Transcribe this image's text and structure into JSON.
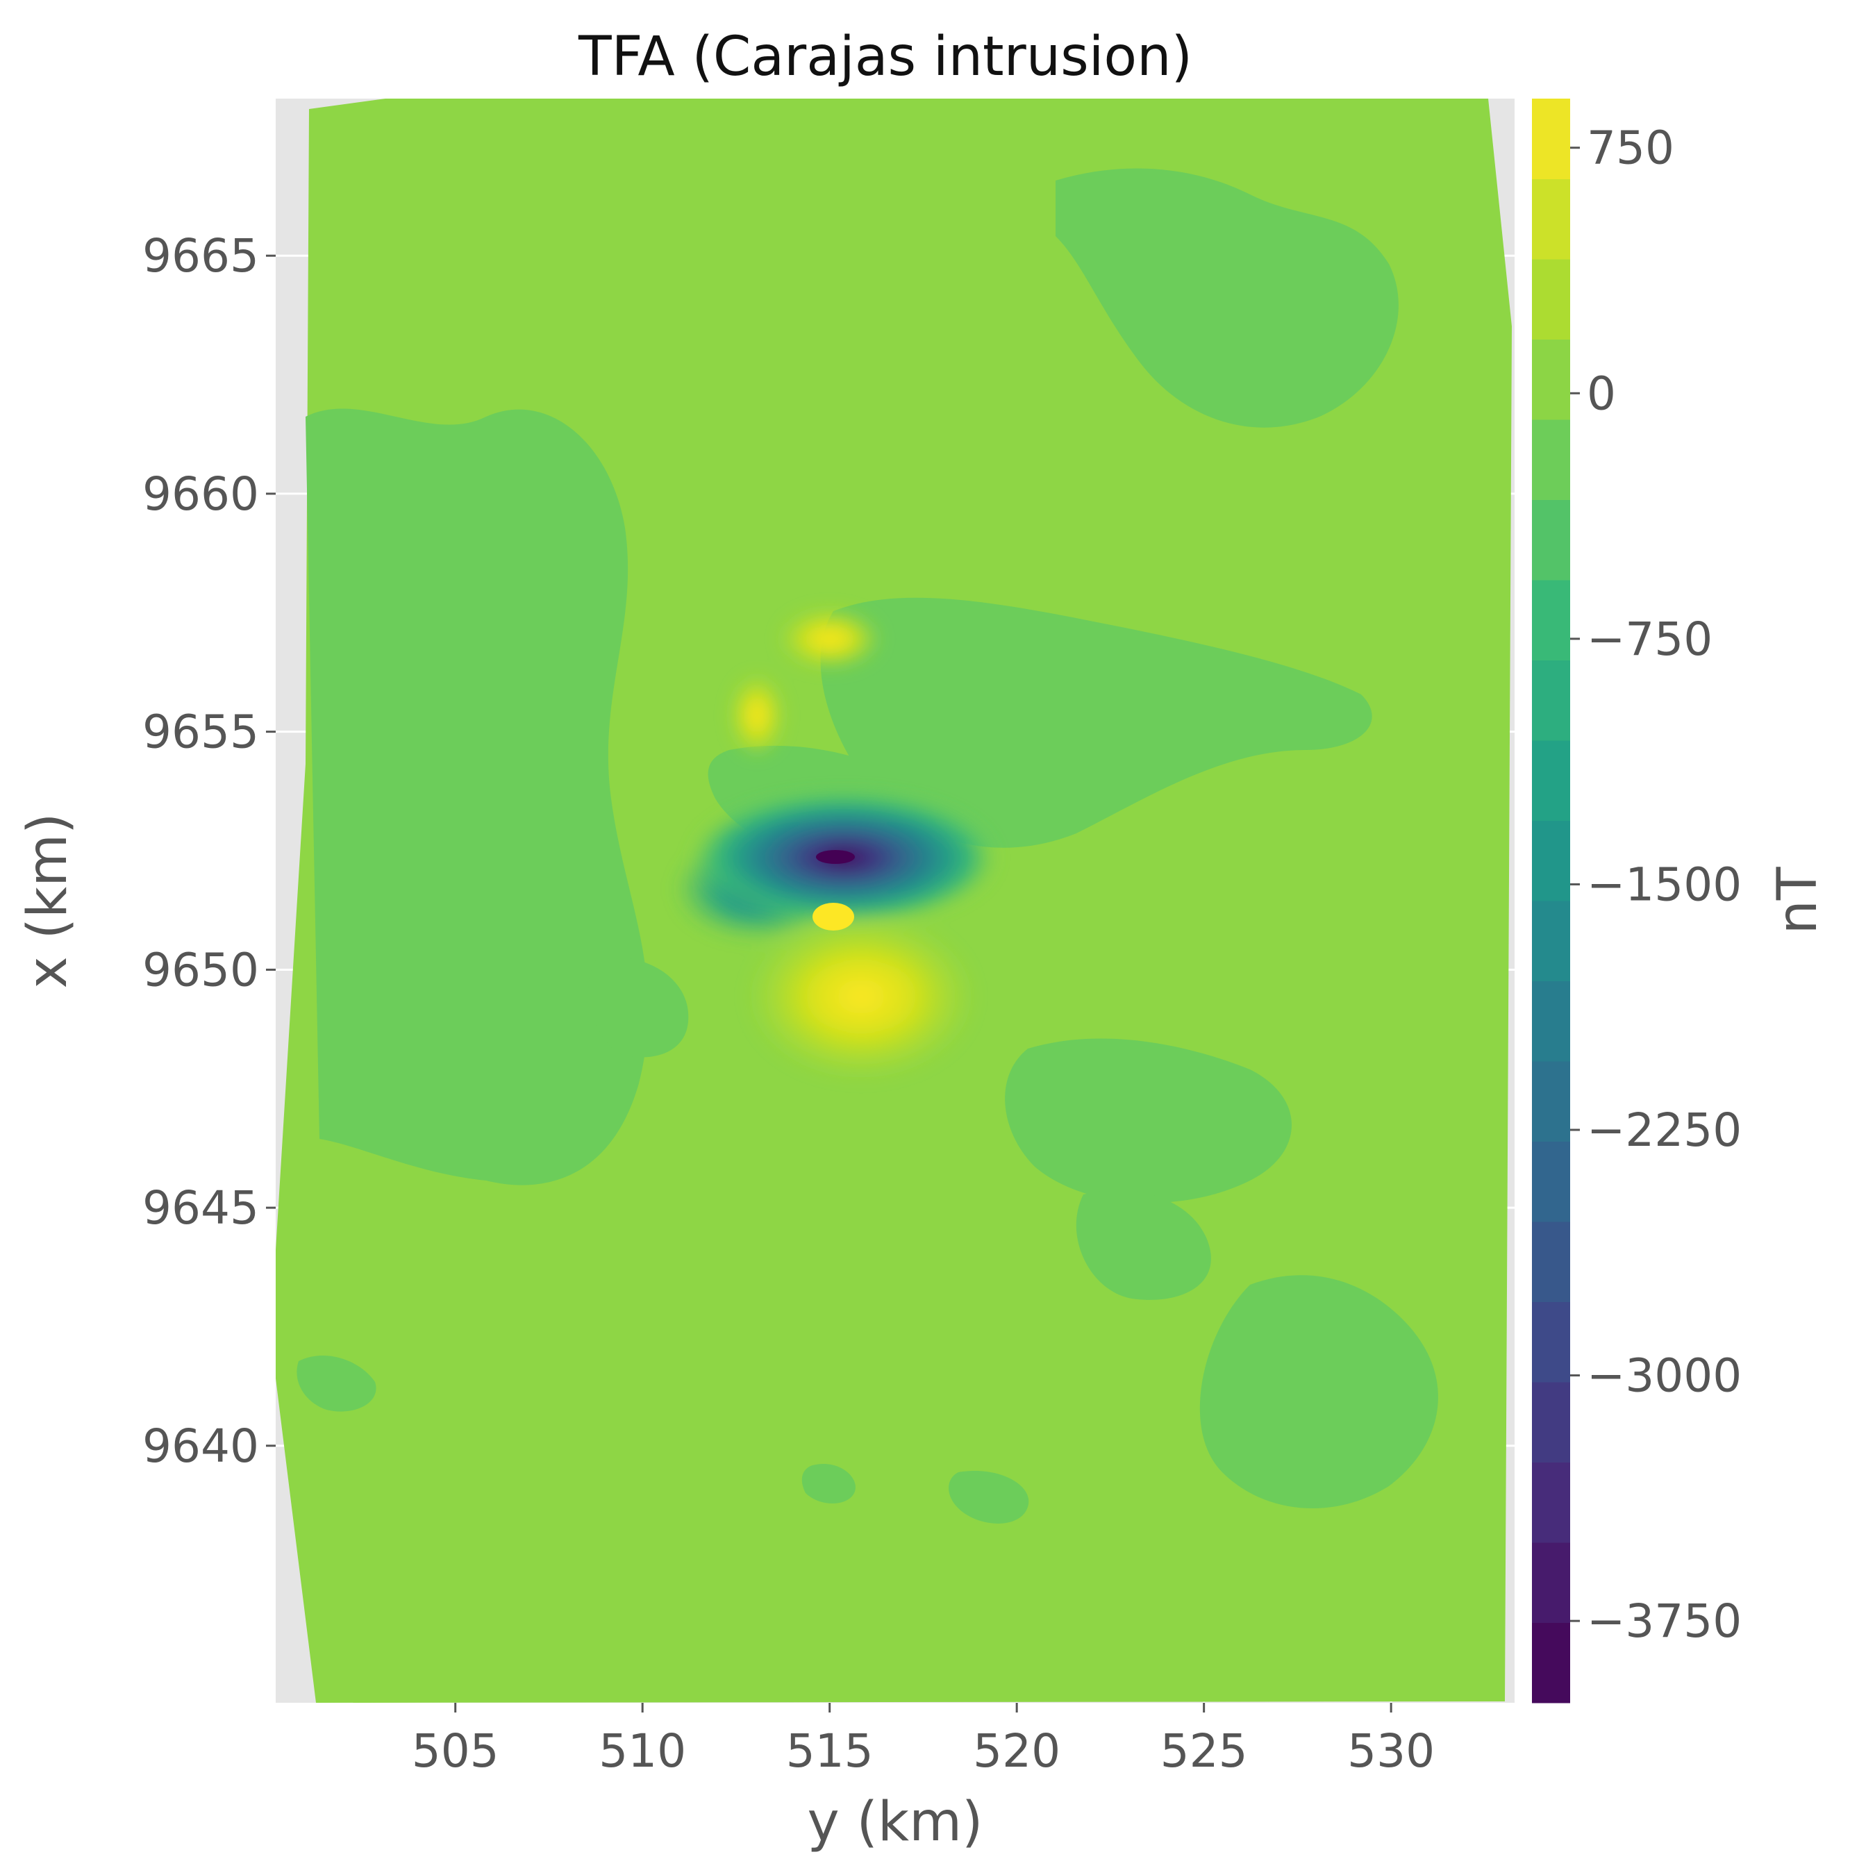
{
  "chart_data": {
    "type": "heatmap",
    "subtype": "filled-contour",
    "title": "TFA (Carajas intrusion)",
    "xlabel": "y (km)",
    "ylabel": "x (km)",
    "xlim": [
      500.2,
      533.3
    ],
    "ylim": [
      9634.6,
      9668.3
    ],
    "xticks": [
      505,
      510,
      515,
      520,
      525,
      530
    ],
    "yticks": [
      9640,
      9645,
      9650,
      9655,
      9660,
      9665
    ],
    "grid": true,
    "colormap": "viridis",
    "colorbar": {
      "label": "nT",
      "range": [
        -4000,
        900
      ],
      "tick_values": [
        750,
        0,
        -750,
        -1500,
        -2250,
        -3000,
        -3750
      ],
      "tick_labels": [
        "750",
        "0",
        "−750",
        "−1500",
        "−2250",
        "−3000",
        "−3750"
      ],
      "num_levels": 20
    },
    "background_level_nT": 100,
    "features": [
      {
        "kind": "minimum",
        "y": 515.2,
        "x": 9652.7,
        "value": -3900
      },
      {
        "kind": "minimum",
        "y": 513.2,
        "x": 9651.8,
        "value": -2300
      },
      {
        "kind": "maximum",
        "y": 515.0,
        "x": 9651.5,
        "value": 800
      },
      {
        "kind": "maximum",
        "y": 517.2,
        "x": 9650.5,
        "value": 550
      },
      {
        "kind": "maximum",
        "y": 514.5,
        "x": 9657.5,
        "value": 400
      },
      {
        "kind": "maximum",
        "y": 513.3,
        "x": 9655.5,
        "value": 350
      }
    ]
  }
}
